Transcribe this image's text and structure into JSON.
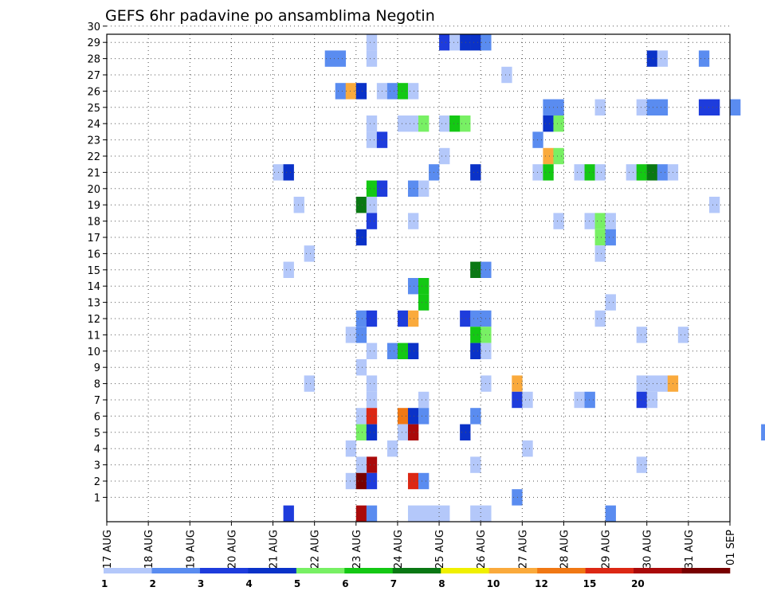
{
  "chart_data": {
    "type": "heatmap",
    "title": "GEFS 6hr padavine po ansamblima Negotin",
    "xlabel": "",
    "ylabel": "",
    "x_tick_labels": [
      "17 AUG",
      "18 AUG",
      "19 AUG",
      "20 AUG",
      "21 AUG",
      "22 AUG",
      "23 AUG",
      "24 AUG",
      "25 AUG",
      "26 AUG",
      "27 AUG",
      "28 AUG",
      "29 AUG",
      "30 AUG",
      "31 AUG",
      "01 SEP"
    ],
    "y_tick_labels": [
      "1",
      "2",
      "3",
      "4",
      "5",
      "6",
      "7",
      "8",
      "9",
      "10",
      "11",
      "12",
      "13",
      "14",
      "15",
      "16",
      "17",
      "18",
      "19",
      "20",
      "21",
      "22",
      "23",
      "24",
      "25",
      "26",
      "27",
      "28",
      "29",
      "30"
    ],
    "x_range_days": [
      0,
      15
    ],
    "y_range": [
      0,
      30
    ],
    "time_step_hours": 6,
    "grid": "dotted",
    "colorbar": {
      "position": "bottom",
      "labels": [
        "1",
        "2",
        "3",
        "4",
        "5",
        "6",
        "7",
        "8",
        "10",
        "12",
        "15",
        "20"
      ],
      "colors": [
        "#b4c8fa",
        "#5a8cf0",
        "#1e3cdc",
        "#0a32c8",
        "#78f064",
        "#14c814",
        "#0a7814",
        "#f0f000",
        "#faaa3c",
        "#f07814",
        "#dc2814",
        "#aa0a0a",
        "#780000"
      ]
    },
    "cells": [
      {
        "member": 30,
        "step": 23,
        "level": 3
      },
      {
        "member": 30,
        "step": 35,
        "level": 1
      },
      {
        "member": 30,
        "step": 36,
        "level": 2
      },
      {
        "member": 30,
        "step": 37,
        "level": 3
      },
      {
        "member": 30,
        "step": 40,
        "level": 1
      },
      {
        "member": 30,
        "step": 52,
        "level": 1
      },
      {
        "member": 30,
        "step": 56,
        "level": 2
      },
      {
        "member": 30,
        "step": 57,
        "level": 1
      },
      {
        "member": 29,
        "step": 25,
        "level": 1
      },
      {
        "member": 29,
        "step": 32,
        "level": 3
      },
      {
        "member": 29,
        "step": 33,
        "level": 1
      },
      {
        "member": 29,
        "step": 34,
        "level": 4
      },
      {
        "member": 29,
        "step": 35,
        "level": 4
      },
      {
        "member": 29,
        "step": 36,
        "level": 2
      },
      {
        "member": 28,
        "step": 21,
        "level": 2
      },
      {
        "member": 28,
        "step": 22,
        "level": 2
      },
      {
        "member": 28,
        "step": 25,
        "level": 1
      },
      {
        "member": 28,
        "step": 52,
        "level": 4
      },
      {
        "member": 28,
        "step": 53,
        "level": 1
      },
      {
        "member": 28,
        "step": 57,
        "level": 2
      },
      {
        "member": 28,
        "step": 67,
        "level": 2
      },
      {
        "member": 28,
        "step": 68,
        "level": 2
      },
      {
        "member": 27,
        "step": 38,
        "level": 1
      },
      {
        "member": 26,
        "step": 22,
        "level": 2
      },
      {
        "member": 26,
        "step": 23,
        "level": 9
      },
      {
        "member": 26,
        "step": 24,
        "level": 4
      },
      {
        "member": 26,
        "step": 26,
        "level": 1
      },
      {
        "member": 26,
        "step": 27,
        "level": 2
      },
      {
        "member": 26,
        "step": 28,
        "level": 6
      },
      {
        "member": 26,
        "step": 29,
        "level": 1
      },
      {
        "member": 25,
        "step": 42,
        "level": 2
      },
      {
        "member": 25,
        "step": 43,
        "level": 2
      },
      {
        "member": 25,
        "step": 47,
        "level": 1
      },
      {
        "member": 25,
        "step": 51,
        "level": 1
      },
      {
        "member": 25,
        "step": 52,
        "level": 2
      },
      {
        "member": 25,
        "step": 53,
        "level": 2
      },
      {
        "member": 25,
        "step": 57,
        "level": 3
      },
      {
        "member": 25,
        "step": 58,
        "level": 3
      },
      {
        "member": 25,
        "step": 60,
        "level": 2
      },
      {
        "member": 25,
        "step": 70,
        "level": 1
      },
      {
        "member": 24,
        "step": 25,
        "level": 1
      },
      {
        "member": 24,
        "step": 28,
        "level": 1
      },
      {
        "member": 24,
        "step": 29,
        "level": 1
      },
      {
        "member": 24,
        "step": 30,
        "level": 5
      },
      {
        "member": 24,
        "step": 32,
        "level": 1
      },
      {
        "member": 24,
        "step": 33,
        "level": 6
      },
      {
        "member": 24,
        "step": 34,
        "level": 5
      },
      {
        "member": 24,
        "step": 42,
        "level": 4
      },
      {
        "member": 24,
        "step": 43,
        "level": 5
      },
      {
        "member": 24,
        "step": 75,
        "level": 2
      },
      {
        "member": 23,
        "step": 25,
        "level": 1
      },
      {
        "member": 23,
        "step": 26,
        "level": 3
      },
      {
        "member": 23,
        "step": 41,
        "level": 2
      },
      {
        "member": 22,
        "step": 32,
        "level": 1
      },
      {
        "member": 22,
        "step": 42,
        "level": 9
      },
      {
        "member": 22,
        "step": 43,
        "level": 5
      },
      {
        "member": 21,
        "step": 16,
        "level": 1
      },
      {
        "member": 21,
        "step": 17,
        "level": 4
      },
      {
        "member": 21,
        "step": 31,
        "level": 2
      },
      {
        "member": 21,
        "step": 35,
        "level": 4
      },
      {
        "member": 21,
        "step": 41,
        "level": 1
      },
      {
        "member": 21,
        "step": 42,
        "level": 6
      },
      {
        "member": 21,
        "step": 45,
        "level": 1
      },
      {
        "member": 21,
        "step": 46,
        "level": 6
      },
      {
        "member": 21,
        "step": 47,
        "level": 1
      },
      {
        "member": 21,
        "step": 50,
        "level": 1
      },
      {
        "member": 21,
        "step": 51,
        "level": 6
      },
      {
        "member": 21,
        "step": 52,
        "level": 7
      },
      {
        "member": 21,
        "step": 53,
        "level": 2
      },
      {
        "member": 21,
        "step": 54,
        "level": 1
      },
      {
        "member": 21,
        "step": 66,
        "level": 1
      },
      {
        "member": 20,
        "step": 25,
        "level": 6
      },
      {
        "member": 20,
        "step": 26,
        "level": 3
      },
      {
        "member": 20,
        "step": 29,
        "level": 2
      },
      {
        "member": 20,
        "step": 30,
        "level": 1
      },
      {
        "member": 19,
        "step": 18,
        "level": 1
      },
      {
        "member": 19,
        "step": 24,
        "level": 7
      },
      {
        "member": 19,
        "step": 25,
        "level": 1
      },
      {
        "member": 19,
        "step": 58,
        "level": 1
      },
      {
        "member": 18,
        "step": 25,
        "level": 3
      },
      {
        "member": 18,
        "step": 29,
        "level": 1
      },
      {
        "member": 18,
        "step": 43,
        "level": 1
      },
      {
        "member": 18,
        "step": 46,
        "level": 1
      },
      {
        "member": 18,
        "step": 47,
        "level": 5
      },
      {
        "member": 18,
        "step": 48,
        "level": 1
      },
      {
        "member": 17,
        "step": 47,
        "level": 5
      },
      {
        "member": 17,
        "step": 48,
        "level": 2
      },
      {
        "member": 17,
        "step": 24,
        "level": 4
      },
      {
        "member": 16,
        "step": 19,
        "level": 1
      },
      {
        "member": 16,
        "step": 47,
        "level": 1
      },
      {
        "member": 16,
        "step": 72,
        "level": 1
      },
      {
        "member": 15,
        "step": 17,
        "level": 1
      },
      {
        "member": 15,
        "step": 35,
        "level": 7
      },
      {
        "member": 15,
        "step": 36,
        "level": 2
      },
      {
        "member": 15,
        "step": 65,
        "level": 1
      },
      {
        "member": 14,
        "step": 29,
        "level": 2
      },
      {
        "member": 14,
        "step": 30,
        "level": 6
      },
      {
        "member": 13,
        "step": 30,
        "level": 6
      },
      {
        "member": 13,
        "step": 48,
        "level": 1
      },
      {
        "member": 12,
        "step": 24,
        "level": 2
      },
      {
        "member": 12,
        "step": 25,
        "level": 3
      },
      {
        "member": 12,
        "step": 28,
        "level": 3
      },
      {
        "member": 12,
        "step": 29,
        "level": 9
      },
      {
        "member": 12,
        "step": 34,
        "level": 3
      },
      {
        "member": 12,
        "step": 35,
        "level": 2
      },
      {
        "member": 12,
        "step": 36,
        "level": 2
      },
      {
        "member": 12,
        "step": 47,
        "level": 1
      },
      {
        "member": 11,
        "step": 23,
        "level": 1
      },
      {
        "member": 11,
        "step": 24,
        "level": 2
      },
      {
        "member": 11,
        "step": 35,
        "level": 6
      },
      {
        "member": 11,
        "step": 36,
        "level": 5
      },
      {
        "member": 11,
        "step": 51,
        "level": 1
      },
      {
        "member": 11,
        "step": 55,
        "level": 1
      },
      {
        "member": 11,
        "step": 69,
        "level": 1
      },
      {
        "member": 10,
        "step": 25,
        "level": 1
      },
      {
        "member": 10,
        "step": 27,
        "level": 2
      },
      {
        "member": 10,
        "step": 28,
        "level": 6
      },
      {
        "member": 10,
        "step": 29,
        "level": 4
      },
      {
        "member": 10,
        "step": 35,
        "level": 4
      },
      {
        "member": 10,
        "step": 36,
        "level": 1
      },
      {
        "member": 10,
        "step": 76,
        "level": 1
      },
      {
        "member": 9,
        "step": 24,
        "level": 1
      },
      {
        "member": 8,
        "step": 19,
        "level": 1
      },
      {
        "member": 8,
        "step": 25,
        "level": 1
      },
      {
        "member": 8,
        "step": 36,
        "level": 1
      },
      {
        "member": 8,
        "step": 39,
        "level": 9
      },
      {
        "member": 8,
        "step": 51,
        "level": 1
      },
      {
        "member": 8,
        "step": 52,
        "level": 1
      },
      {
        "member": 8,
        "step": 53,
        "level": 1
      },
      {
        "member": 8,
        "step": 54,
        "level": 9
      },
      {
        "member": 8,
        "step": 70,
        "level": 1
      },
      {
        "member": 8,
        "step": 74,
        "level": 1
      },
      {
        "member": 7,
        "step": 25,
        "level": 1
      },
      {
        "member": 7,
        "step": 30,
        "level": 1
      },
      {
        "member": 7,
        "step": 39,
        "level": 3
      },
      {
        "member": 7,
        "step": 40,
        "level": 1
      },
      {
        "member": 7,
        "step": 45,
        "level": 1
      },
      {
        "member": 7,
        "step": 46,
        "level": 2
      },
      {
        "member": 7,
        "step": 51,
        "level": 3
      },
      {
        "member": 7,
        "step": 52,
        "level": 1
      },
      {
        "member": 6,
        "step": 24,
        "level": 1
      },
      {
        "member": 6,
        "step": 25,
        "level": 11
      },
      {
        "member": 6,
        "step": 28,
        "level": 10
      },
      {
        "member": 6,
        "step": 29,
        "level": 4
      },
      {
        "member": 6,
        "step": 30,
        "level": 2
      },
      {
        "member": 6,
        "step": 35,
        "level": 2
      },
      {
        "member": 5,
        "step": 24,
        "level": 5
      },
      {
        "member": 5,
        "step": 25,
        "level": 4
      },
      {
        "member": 5,
        "step": 28,
        "level": 1
      },
      {
        "member": 5,
        "step": 29,
        "level": 12
      },
      {
        "member": 5,
        "step": 34,
        "level": 4
      },
      {
        "member": 5,
        "step": 63,
        "level": 2
      },
      {
        "member": 5,
        "step": 64,
        "level": 2
      },
      {
        "member": 4,
        "step": 23,
        "level": 1
      },
      {
        "member": 4,
        "step": 27,
        "level": 1
      },
      {
        "member": 4,
        "step": 40,
        "level": 1
      },
      {
        "member": 3,
        "step": 25,
        "level": 12
      },
      {
        "member": 3,
        "step": 35,
        "level": 1
      },
      {
        "member": 3,
        "step": 51,
        "level": 1
      },
      {
        "member": 3,
        "step": 64,
        "level": 3
      },
      {
        "member": 3,
        "step": 24,
        "level": 1
      },
      {
        "member": 2,
        "step": 23,
        "level": 1
      },
      {
        "member": 2,
        "step": 24,
        "level": 13
      },
      {
        "member": 2,
        "step": 25,
        "level": 3
      },
      {
        "member": 2,
        "step": 29,
        "level": 11
      },
      {
        "member": 2,
        "step": 30,
        "level": 2
      },
      {
        "member": 1,
        "step": 39,
        "level": 2
      },
      {
        "member": 0,
        "step": 17,
        "level": 3
      },
      {
        "member": 0,
        "step": 24,
        "level": 12
      },
      {
        "member": 0,
        "step": 25,
        "level": 2
      },
      {
        "member": 0,
        "step": 29,
        "level": 1
      },
      {
        "member": 0,
        "step": 30,
        "level": 1
      },
      {
        "member": 0,
        "step": 31,
        "level": 1
      },
      {
        "member": 0,
        "step": 32,
        "level": 1
      },
      {
        "member": 0,
        "step": 35,
        "level": 1
      },
      {
        "member": 0,
        "step": 36,
        "level": 1
      },
      {
        "member": 0,
        "step": 48,
        "level": 2
      }
    ]
  }
}
